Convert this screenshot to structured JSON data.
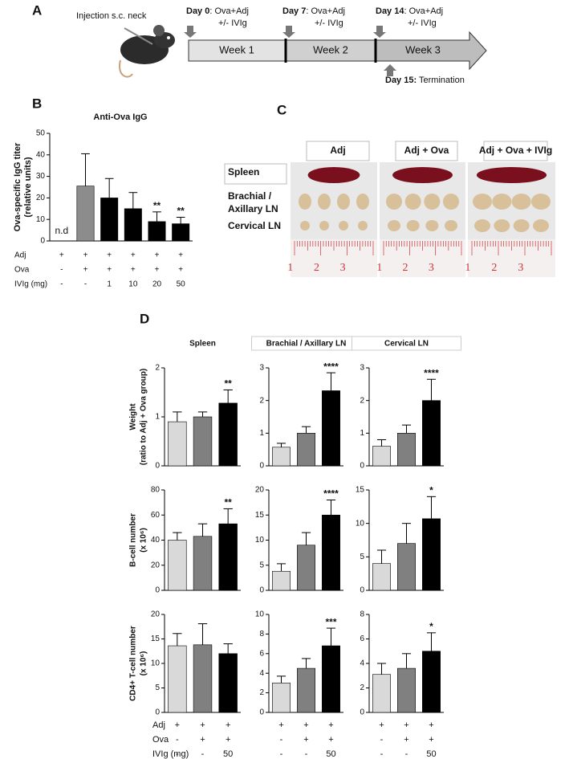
{
  "panel_labels": {
    "a": "A",
    "b": "B",
    "c": "C",
    "d": "D"
  },
  "timeline": {
    "injection": "Injection s.c. neck",
    "weeks": [
      "Week 1",
      "Week 2",
      "Week 3"
    ],
    "events": [
      {
        "day": "Day 0",
        "text": ": Ova+Adj",
        "sub": "+/- IVIg"
      },
      {
        "day": "Day 7",
        "text": ": Ova+Adj",
        "sub": "+/- IVIg"
      },
      {
        "day": "Day 14",
        "text": ": Ova+Adj",
        "sub": "+/- IVIg"
      }
    ],
    "termination": {
      "day": "Day 15:",
      "text": " Termination"
    }
  },
  "photo": {
    "columns": [
      "Adj",
      "Adj + Ova",
      "Adj + Ova + IVIg"
    ],
    "rows": [
      [
        "Spleen"
      ],
      [
        "Brachial /",
        "Axillary LN"
      ],
      [
        "Cervical LN"
      ]
    ],
    "ruler_labels": [
      "1",
      "2",
      "3"
    ]
  },
  "panel_d": {
    "columns": [
      "Spleen",
      "Brachial / Axillary LN",
      "Cervical LN"
    ],
    "row_labels": [
      [
        "Weight",
        "(ratio to Adj + Ova group)"
      ],
      [
        "B-cell number",
        "(x 10⁶)"
      ],
      [
        "CD4+ T-cell number",
        "(x 10⁶)"
      ]
    ],
    "conditions": [
      {
        "name": "Adj",
        "values": [
          "+",
          "+",
          "+"
        ]
      },
      {
        "name": "Ova",
        "values": [
          "-",
          "+",
          "+"
        ]
      },
      {
        "name": "IVIg (mg)",
        "values": [
          "-",
          "-",
          "50"
        ]
      }
    ]
  },
  "chart_data": [
    {
      "type": "bar",
      "title": "Anti-Ova IgG",
      "ylabel": [
        "Ova-specific IgG titer",
        "(relative units)"
      ],
      "values": [
        null,
        25.5,
        20,
        15,
        9,
        8
      ],
      "errors": [
        null,
        15,
        9,
        7.5,
        4.5,
        3
      ],
      "annotations": [
        "n.d",
        null,
        null,
        null,
        "**",
        "**"
      ],
      "colors": [
        "#000000",
        "#8c8c8c",
        "#000000",
        "#000000",
        "#000000",
        "#000000"
      ],
      "ylim": [
        0,
        50
      ],
      "yticks": [
        0,
        10,
        20,
        30,
        40,
        50
      ],
      "conditions": [
        {
          "name": "Adj",
          "values": [
            "+",
            "+",
            "+",
            "+",
            "+",
            "+"
          ]
        },
        {
          "name": "Ova",
          "values": [
            "-",
            "+",
            "+",
            "+",
            "+",
            "+"
          ]
        },
        {
          "name": "IVIg (mg)",
          "values": [
            "-",
            "-",
            "1",
            "10",
            "20",
            "50"
          ]
        }
      ]
    },
    {
      "type": "bar",
      "values": [
        0.9,
        1.0,
        1.28
      ],
      "errors": [
        0.2,
        0.1,
        0.27
      ],
      "annotations": [
        null,
        null,
        "**"
      ],
      "colors": [
        "#d9d9d9",
        "#808080",
        "#000000"
      ],
      "ylim": [
        0,
        2
      ],
      "yticks": [
        0,
        1,
        2
      ]
    },
    {
      "type": "bar",
      "values": [
        0.57,
        1.0,
        2.3
      ],
      "errors": [
        0.12,
        0.2,
        0.55
      ],
      "annotations": [
        null,
        null,
        "****"
      ],
      "colors": [
        "#d9d9d9",
        "#808080",
        "#000000"
      ],
      "ylim": [
        0,
        3
      ],
      "yticks": [
        0,
        1,
        2,
        3
      ]
    },
    {
      "type": "bar",
      "values": [
        0.6,
        1.0,
        2.0
      ],
      "errors": [
        0.2,
        0.25,
        0.65
      ],
      "annotations": [
        null,
        null,
        "****"
      ],
      "colors": [
        "#d9d9d9",
        "#808080",
        "#000000"
      ],
      "ylim": [
        0,
        3
      ],
      "yticks": [
        0,
        1,
        2,
        3
      ]
    },
    {
      "type": "bar",
      "values": [
        40,
        43,
        53
      ],
      "errors": [
        6,
        10,
        12
      ],
      "annotations": [
        null,
        null,
        "**"
      ],
      "colors": [
        "#d9d9d9",
        "#808080",
        "#000000"
      ],
      "ylim": [
        0,
        80
      ],
      "yticks": [
        0,
        20,
        40,
        60,
        80
      ]
    },
    {
      "type": "bar",
      "values": [
        3.8,
        9,
        15
      ],
      "errors": [
        1.5,
        2.5,
        3
      ],
      "annotations": [
        null,
        null,
        "****"
      ],
      "colors": [
        "#d9d9d9",
        "#808080",
        "#000000"
      ],
      "ylim": [
        0,
        20
      ],
      "yticks": [
        0,
        5,
        10,
        15,
        20
      ]
    },
    {
      "type": "bar",
      "values": [
        4,
        7,
        10.7
      ],
      "errors": [
        2,
        3,
        3.3
      ],
      "annotations": [
        null,
        null,
        "*"
      ],
      "colors": [
        "#d9d9d9",
        "#808080",
        "#000000"
      ],
      "ylim": [
        0,
        15
      ],
      "yticks": [
        0,
        5,
        10,
        15
      ]
    },
    {
      "type": "bar",
      "values": [
        13.6,
        13.8,
        12
      ],
      "errors": [
        2.5,
        4.3,
        2
      ],
      "annotations": [
        null,
        null,
        null
      ],
      "colors": [
        "#d9d9d9",
        "#808080",
        "#000000"
      ],
      "ylim": [
        0,
        20
      ],
      "yticks": [
        0,
        5,
        10,
        15,
        20
      ]
    },
    {
      "type": "bar",
      "values": [
        3,
        4.5,
        6.8
      ],
      "errors": [
        0.7,
        1,
        1.8
      ],
      "annotations": [
        null,
        null,
        "***"
      ],
      "colors": [
        "#d9d9d9",
        "#808080",
        "#000000"
      ],
      "ylim": [
        0,
        10
      ],
      "yticks": [
        0,
        2,
        4,
        6,
        8,
        10
      ]
    },
    {
      "type": "bar",
      "values": [
        3.1,
        3.6,
        5
      ],
      "errors": [
        0.9,
        1.2,
        1.5
      ],
      "annotations": [
        null,
        null,
        "*"
      ],
      "colors": [
        "#d9d9d9",
        "#808080",
        "#000000"
      ],
      "ylim": [
        0,
        8
      ],
      "yticks": [
        0,
        2,
        4,
        6,
        8
      ]
    }
  ]
}
